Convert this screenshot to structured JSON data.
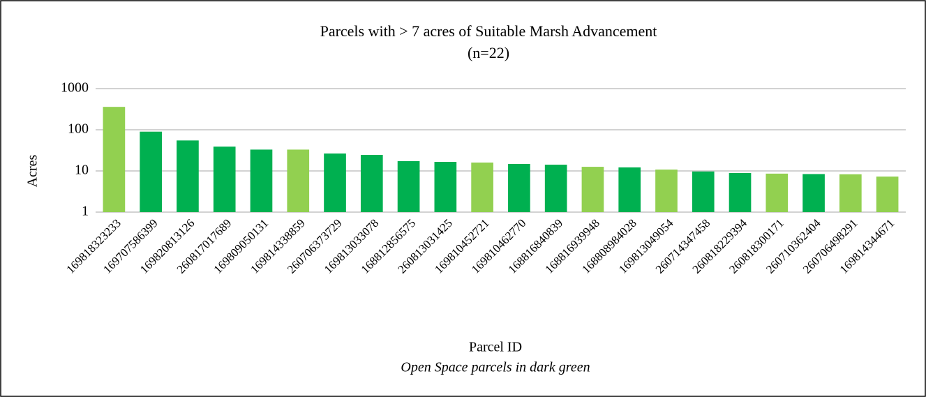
{
  "chart_data": {
    "type": "bar",
    "title": [
      "Parcels with  > 7 acres of Suitable Marsh Advancement",
      "(n=22)"
    ],
    "x_label": "Parcel ID",
    "y_label": "Acres",
    "annotation": "Open Space parcels in dark green",
    "categories": [
      "169818323233",
      "169707586399",
      "169820813126",
      "260817017689",
      "169809050131",
      "169814338859",
      "260706373729",
      "169813033078",
      "168812856575",
      "260813031425",
      "169810452721",
      "169810462770",
      "168816840839",
      "168816939948",
      "168808984028",
      "169813049054",
      "260714347458",
      "260818229394",
      "260818300171",
      "260710362404",
      "260706498291",
      "169814344671"
    ],
    "values": [
      360,
      90,
      55,
      39,
      33,
      33,
      26.5,
      24.5,
      17.3,
      16.6,
      16,
      14.8,
      14.2,
      12.6,
      12.2,
      10.8,
      9.7,
      8.9,
      8.6,
      8.4,
      8.3,
      7.3
    ],
    "colors": [
      "#92d050",
      "#00b050",
      "#00b050",
      "#00b050",
      "#00b050",
      "#92d050",
      "#00b050",
      "#00b050",
      "#00b050",
      "#00b050",
      "#92d050",
      "#00b050",
      "#00b050",
      "#92d050",
      "#00b050",
      "#92d050",
      "#00b050",
      "#00b050",
      "#92d050",
      "#00b050",
      "#92d050",
      "#92d050"
    ],
    "ylim": [
      1,
      1000
    ],
    "yticks": [
      1,
      10,
      100,
      1000
    ],
    "log_scale": true,
    "grid": true
  }
}
